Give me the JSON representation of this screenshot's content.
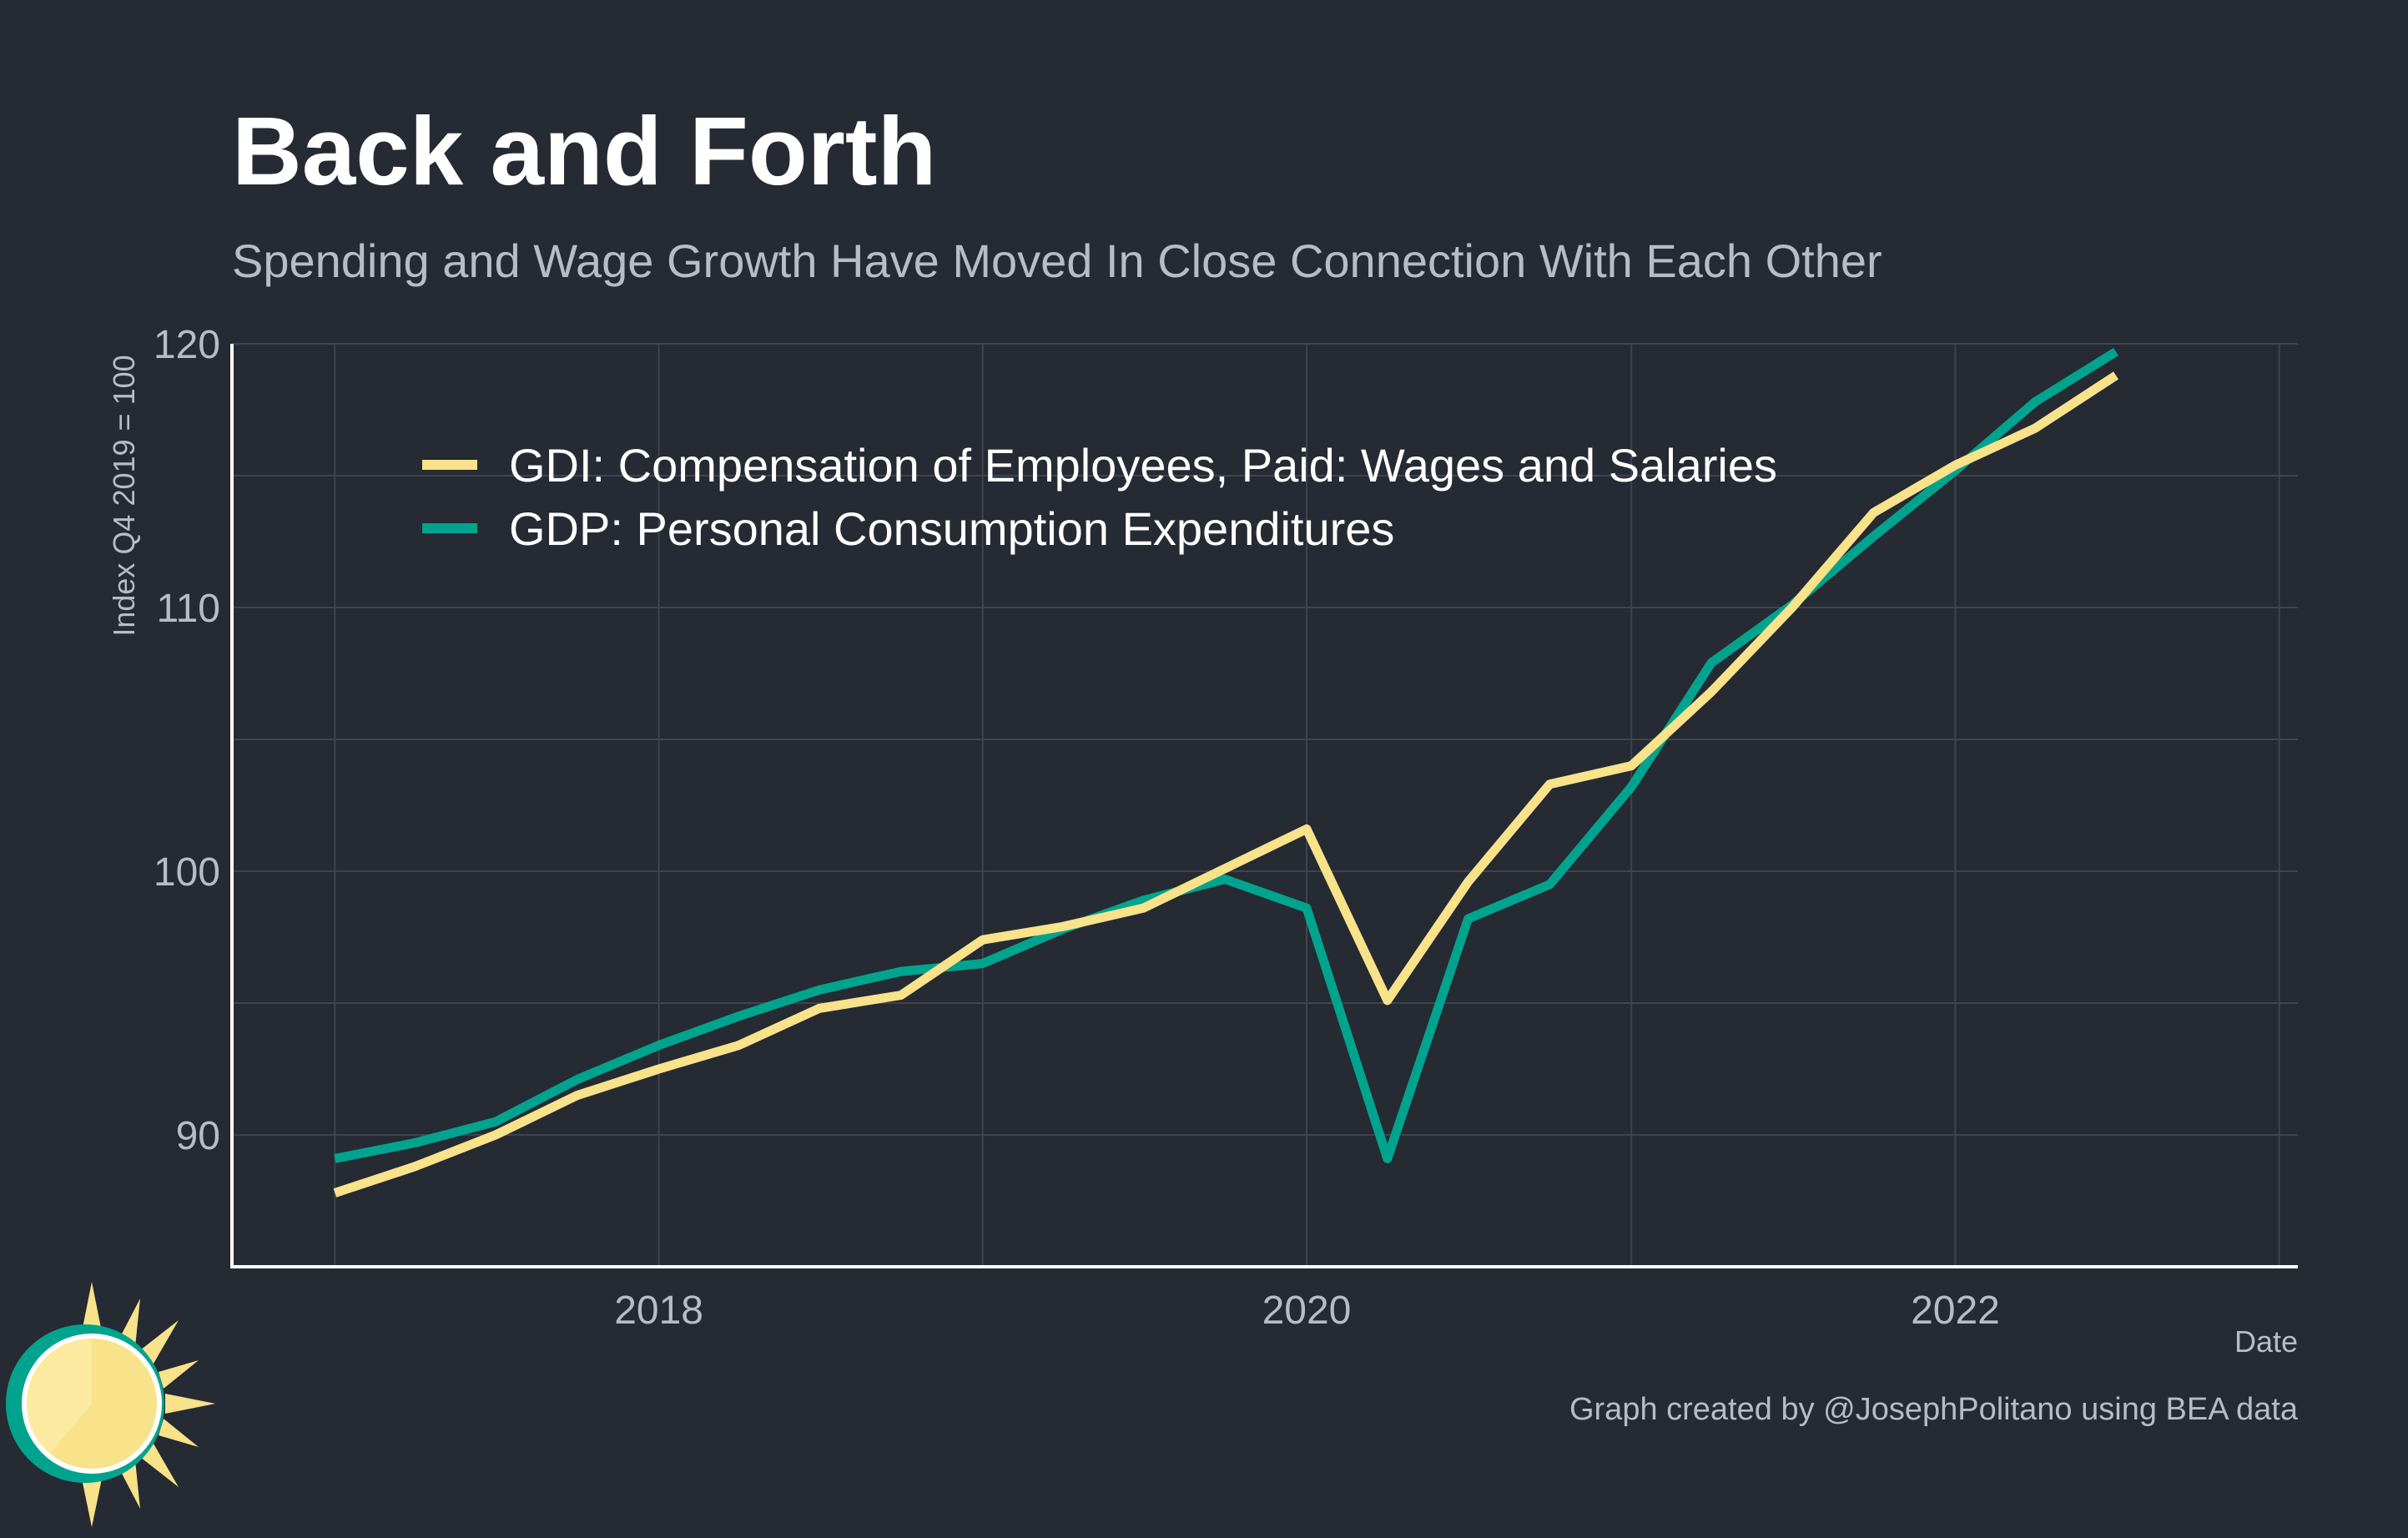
{
  "title": "Back and Forth",
  "subtitle": "Spending and Wage Growth Have Moved In Close Connection With Each Other",
  "caption": "Graph created by @JosephPolitano using BEA data",
  "logo_icon": "sun-clock-logo-icon",
  "colors": {
    "background": "#252a33",
    "grid": "#3e4450",
    "axis": "#ffffff",
    "gdi": "#f8e28a",
    "gdp": "#00a48e"
  },
  "chart_data": {
    "type": "line",
    "title": "Back and Forth",
    "subtitle": "Spending and Wage Growth Have Moved In Close Connection With Each Other",
    "xlabel": "Date",
    "ylabel": "Index Q4 2019 = 100",
    "x": [
      "2017-01-01",
      "2017-04-01",
      "2017-07-01",
      "2017-10-01",
      "2018-01-01",
      "2018-04-01",
      "2018-07-01",
      "2018-10-01",
      "2019-01-01",
      "2019-04-01",
      "2019-07-01",
      "2019-10-01",
      "2020-01-01",
      "2020-04-01",
      "2020-07-01",
      "2020-10-01",
      "2021-01-01",
      "2021-04-01",
      "2021-07-01",
      "2021-10-01",
      "2022-01-01",
      "2022-04-01",
      "2022-07-01"
    ],
    "series": [
      {
        "name": "GDI: Compensation of Employees, Paid: Wages and Salaries",
        "color": "#f8e28a",
        "values": [
          87.8,
          88.8,
          90.0,
          91.5,
          92.5,
          93.4,
          94.8,
          95.3,
          97.4,
          97.9,
          98.6,
          100.1,
          101.6,
          95.1,
          99.6,
          103.3,
          104.0,
          106.8,
          110.0,
          113.6,
          115.4,
          116.8,
          118.8
        ]
      },
      {
        "name": "GDP: Personal Consumption Expenditures",
        "color": "#00a48e",
        "values": [
          89.1,
          89.7,
          90.5,
          92.1,
          93.4,
          94.5,
          95.5,
          96.2,
          96.5,
          97.8,
          98.9,
          99.7,
          98.6,
          89.1,
          98.2,
          99.5,
          103.2,
          107.9,
          110.1,
          112.7,
          115.2,
          117.8,
          119.7
        ]
      }
    ],
    "x_ticks": [
      {
        "date": "2018-01-01",
        "label": "2018"
      },
      {
        "date": "2020-01-01",
        "label": "2020"
      },
      {
        "date": "2022-01-01",
        "label": "2022"
      }
    ],
    "x_minor_ticks": [
      "2017-01-01",
      "2019-01-01",
      "2021-01-01",
      "2023-01-01"
    ],
    "y_ticks": [
      90,
      100,
      110,
      120
    ],
    "y_minor_ticks": [
      95,
      105,
      115
    ],
    "xlim": [
      "2016-09-07",
      "2023-01-22"
    ],
    "ylim": [
      85,
      120
    ],
    "grid": true,
    "legend_position": "top-left"
  }
}
